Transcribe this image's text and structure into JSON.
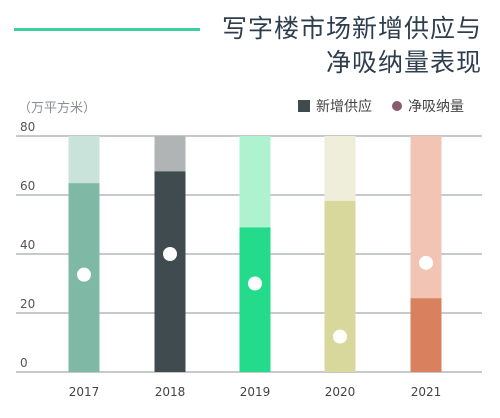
{
  "header": {
    "title_line1": "写字楼市场新增供应与",
    "title_line2": "净吸纳量表现",
    "accent_color": "#3ecf9f"
  },
  "chart_data": {
    "type": "bar",
    "title": "写字楼市场新增供应与净吸纳量表现",
    "ylabel": "（万平方米）",
    "ylim": [
      0,
      80
    ],
    "yticks": [
      0,
      20,
      40,
      60,
      80
    ],
    "grid": true,
    "legend_position": "top-right",
    "categories": [
      "2017",
      "2018",
      "2019",
      "2020",
      "2021"
    ],
    "series": [
      {
        "name": "新增供应",
        "type": "bar",
        "values": [
          64,
          68,
          49,
          58,
          25
        ],
        "legend_color": "#3f4b4f"
      },
      {
        "name": "净吸纳量",
        "type": "dot",
        "values": [
          33,
          40,
          30,
          12,
          37
        ],
        "legend_color": "#8a5a6e"
      }
    ],
    "bar_colors": [
      "#7fb9a6",
      "#3f4b4f",
      "#23db8a",
      "#d9d89c",
      "#d9815e"
    ],
    "bar_bg_colors": [
      "#c9e3db",
      "#b0b4b5",
      "#aef2cf",
      "#eeeedb",
      "#f2c4b4"
    ]
  }
}
